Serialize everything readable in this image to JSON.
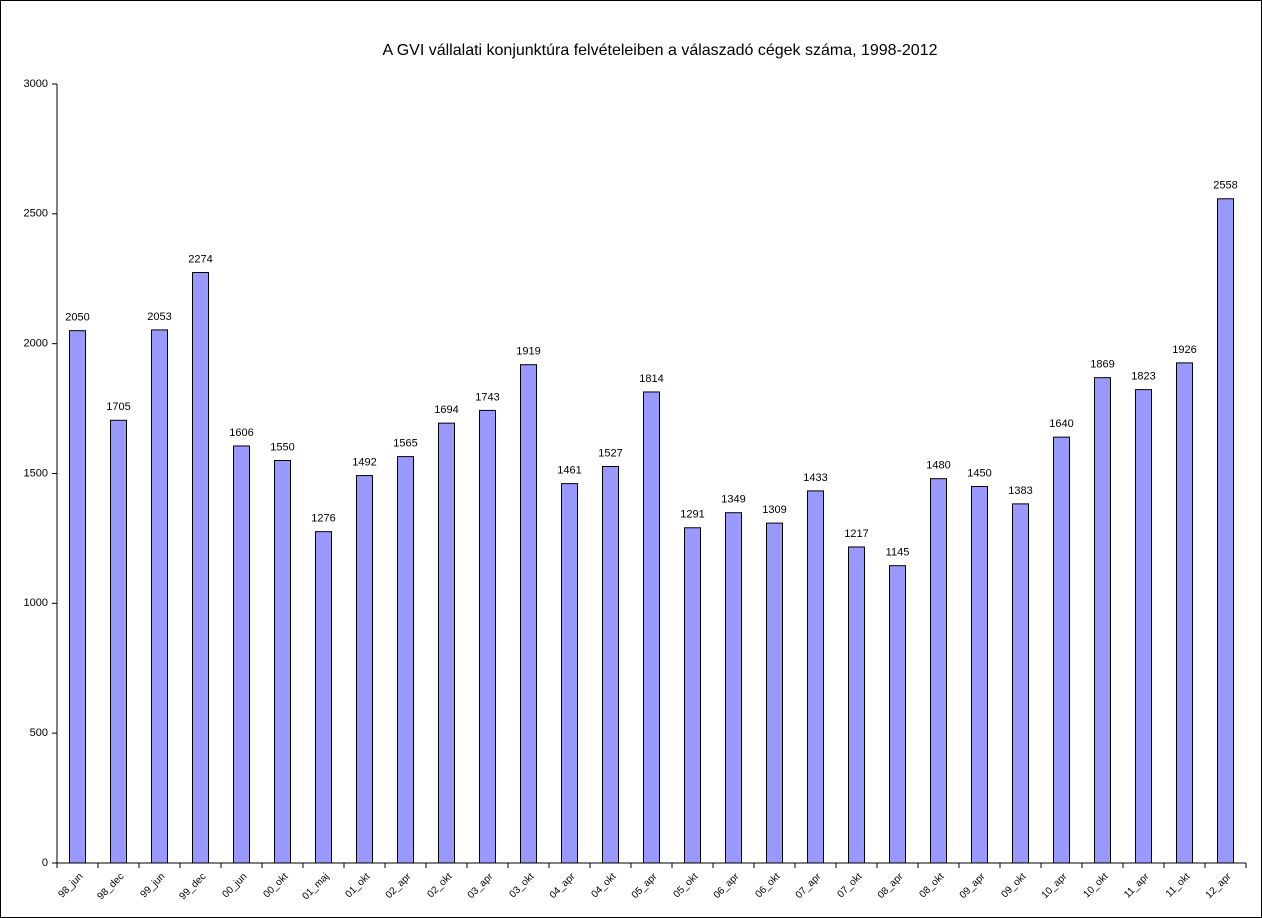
{
  "chart_data": {
    "type": "bar",
    "title": "A GVI vállalati konjunktúra felvételeiben a válaszadó cégek száma, 1998-2012",
    "categories": [
      "98_jun",
      "98_dec",
      "99_jun",
      "99_dec",
      "00_jun",
      "00_okt",
      "01_maj",
      "01_okt",
      "02_apr",
      "02_okt",
      "03_apr",
      "03_okt",
      "04_apr",
      "04_okt",
      "05_apr",
      "05_okt",
      "06_apr",
      "06_okt",
      "07_apr",
      "07_okt",
      "08_apr",
      "08_okt",
      "09_apr",
      "09_okt",
      "10_apr",
      "10_okt",
      "11_apr",
      "11_okt",
      "12_apr"
    ],
    "values": [
      2050,
      1705,
      2053,
      2274,
      1606,
      1550,
      1276,
      1492,
      1565,
      1694,
      1743,
      1919,
      1461,
      1527,
      1814,
      1291,
      1349,
      1309,
      1433,
      1217,
      1145,
      1480,
      1450,
      1383,
      1640,
      1869,
      1823,
      1926,
      2558
    ],
    "color": "#9999ff",
    "ylim": [
      0,
      3000
    ],
    "yticks": [
      0,
      500,
      1000,
      1500,
      2000,
      2500,
      3000
    ],
    "grid": false
  }
}
